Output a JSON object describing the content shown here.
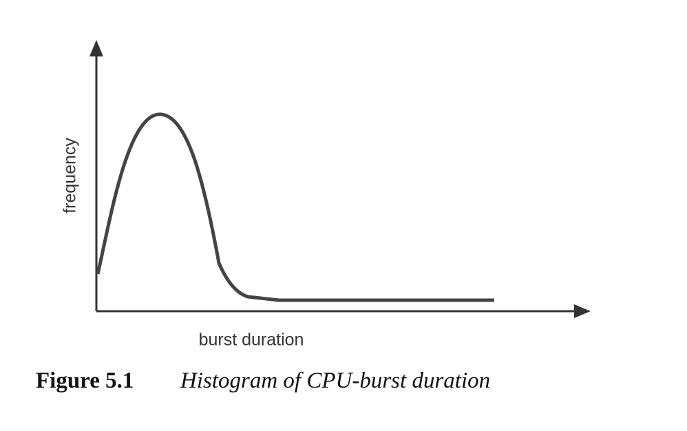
{
  "figure": {
    "y_label": "frequency",
    "x_label": "burst duration",
    "caption": {
      "label": "Figure 5.1",
      "text": "Histogram of CPU-burst duration"
    }
  }
}
